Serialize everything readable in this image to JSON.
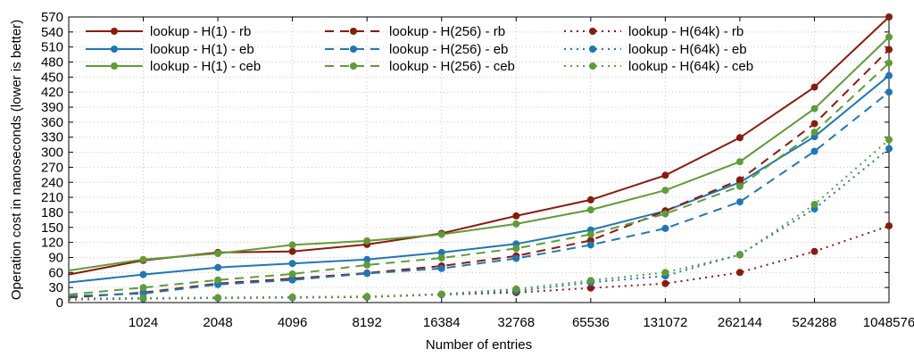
{
  "chart_data": {
    "type": "line",
    "xlabel": "Number of entries",
    "ylabel": "Operation cost in nanoseconds (lower is better)",
    "x": [
      512,
      1024,
      2048,
      4096,
      8192,
      16384,
      32768,
      65536,
      131072,
      262144,
      524288,
      1048576
    ],
    "x_tick_labels": [
      "1024",
      "2048",
      "4096",
      "8192",
      "16384",
      "32768",
      "65536",
      "131072",
      "262144",
      "524288",
      "1048576"
    ],
    "x_tick_values": [
      1024,
      2048,
      4096,
      8192,
      16384,
      32768,
      65536,
      131072,
      262144,
      524288,
      1048576
    ],
    "xscale": "log2",
    "xlim": [
      512,
      1048576
    ],
    "ylim": [
      0,
      570
    ],
    "y_ticks": [
      0,
      30,
      60,
      90,
      120,
      150,
      180,
      210,
      240,
      270,
      300,
      330,
      360,
      390,
      420,
      450,
      480,
      510,
      540,
      570
    ],
    "grid": "dotted",
    "legend_position": "top",
    "series": [
      {
        "name": "lookup - H(1) - rb",
        "color": "#8b1a0e",
        "dash": "solid",
        "values": [
          56,
          84,
          100,
          102,
          116,
          138,
          173,
          205,
          254,
          329,
          430,
          570
        ]
      },
      {
        "name": "lookup - H(1) - eb",
        "color": "#1f77b4",
        "dash": "solid",
        "values": [
          40,
          56,
          70,
          78,
          86,
          100,
          117,
          145,
          183,
          240,
          331,
          453
        ]
      },
      {
        "name": "lookup - H(1) - ceb",
        "color": "#5e9c36",
        "dash": "solid",
        "values": [
          64,
          86,
          98,
          115,
          123,
          136,
          157,
          185,
          224,
          281,
          387,
          530
        ]
      },
      {
        "name": "lookup - H(256) - rb",
        "color": "#8b1a0e",
        "dash": "dashed",
        "values": [
          10,
          20,
          38,
          48,
          59,
          73,
          93,
          124,
          183,
          245,
          357,
          505
        ]
      },
      {
        "name": "lookup - H(256) - eb",
        "color": "#1f77b4",
        "dash": "dashed",
        "values": [
          13,
          18,
          36,
          45,
          58,
          68,
          88,
          115,
          148,
          201,
          302,
          420
        ]
      },
      {
        "name": "lookup - H(256) - ceb",
        "color": "#5e9c36",
        "dash": "dashed",
        "values": [
          16,
          30,
          45,
          57,
          75,
          89,
          108,
          136,
          177,
          232,
          340,
          478
        ]
      },
      {
        "name": "lookup - H(64k) - rb",
        "color": "#8b1a0e",
        "dash": "dotted",
        "values": [
          6,
          8,
          9,
          10,
          11,
          16,
          20,
          29,
          38,
          60,
          102,
          153
        ]
      },
      {
        "name": "lookup - H(64k) - eb",
        "color": "#1f77b4",
        "dash": "dotted",
        "values": [
          7,
          8,
          9,
          10,
          12,
          16,
          23,
          40,
          53,
          96,
          187,
          307
        ]
      },
      {
        "name": "lookup - H(64k) - ceb",
        "color": "#5e9c36",
        "dash": "dotted",
        "values": [
          8,
          9,
          10,
          11,
          12,
          17,
          27,
          44,
          60,
          95,
          196,
          325
        ]
      }
    ]
  }
}
